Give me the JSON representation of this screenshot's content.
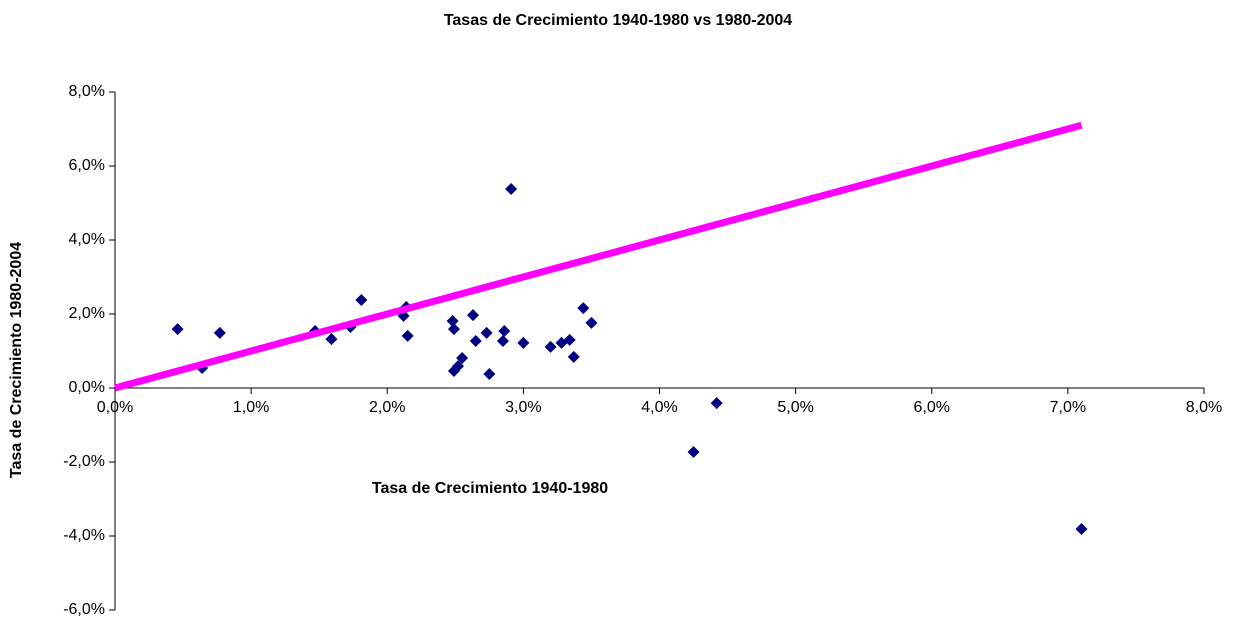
{
  "chart_data": {
    "type": "scatter",
    "title": "Tasas de Crecimiento 1940-1980 vs 1980-2004",
    "x_label": "Tasa de Crecimiento 1940-1980",
    "y_label": "Tasa de Crecimiento 1980-2004",
    "xlim": [
      0,
      8
    ],
    "ylim": [
      -6,
      8
    ],
    "xticks": [
      {
        "value": 0,
        "label": "0,0%"
      },
      {
        "value": 1,
        "label": "1,0%"
      },
      {
        "value": 2,
        "label": "2,0%"
      },
      {
        "value": 3,
        "label": "3,0%"
      },
      {
        "value": 4,
        "label": "4,0%"
      },
      {
        "value": 5,
        "label": "5,0%"
      },
      {
        "value": 6,
        "label": "6,0%"
      },
      {
        "value": 7,
        "label": "7,0%"
      },
      {
        "value": 8,
        "label": "8,0%"
      }
    ],
    "yticks": [
      {
        "value": -6,
        "label": "-6,0%"
      },
      {
        "value": -4,
        "label": "-4,0%"
      },
      {
        "value": -2,
        "label": "-2,0%"
      },
      {
        "value": 0,
        "label": "0,0%"
      },
      {
        "value": 2,
        "label": "2,0%"
      },
      {
        "value": 4,
        "label": "4,0%"
      },
      {
        "value": 6,
        "label": "6,0%"
      },
      {
        "value": 8,
        "label": "8,0%"
      }
    ],
    "series": [
      {
        "type": "scatter",
        "color": "#000080",
        "x": [
          0.46,
          0.64,
          0.77,
          1.47,
          1.59,
          1.73,
          1.81,
          2.12,
          2.14,
          2.15,
          2.48,
          2.49,
          2.49,
          2.52,
          2.55,
          2.63,
          2.65,
          2.73,
          2.75,
          2.85,
          2.86,
          2.91,
          3.0,
          3.2,
          3.28,
          3.34,
          3.37,
          3.44,
          3.5,
          4.25,
          4.42,
          7.1
        ],
        "values": [
          1.59,
          0.54,
          1.49,
          1.54,
          1.32,
          1.65,
          2.38,
          1.95,
          2.19,
          1.41,
          1.81,
          1.59,
          0.46,
          0.59,
          0.81,
          1.97,
          1.27,
          1.49,
          0.38,
          1.27,
          1.54,
          5.38,
          1.22,
          1.11,
          1.22,
          1.3,
          0.84,
          2.16,
          1.76,
          -1.73,
          -0.41,
          -3.81
        ]
      },
      {
        "type": "line",
        "color": "#ff00ff",
        "x": [
          0,
          7.1
        ],
        "values": [
          0,
          7.1
        ]
      }
    ]
  }
}
